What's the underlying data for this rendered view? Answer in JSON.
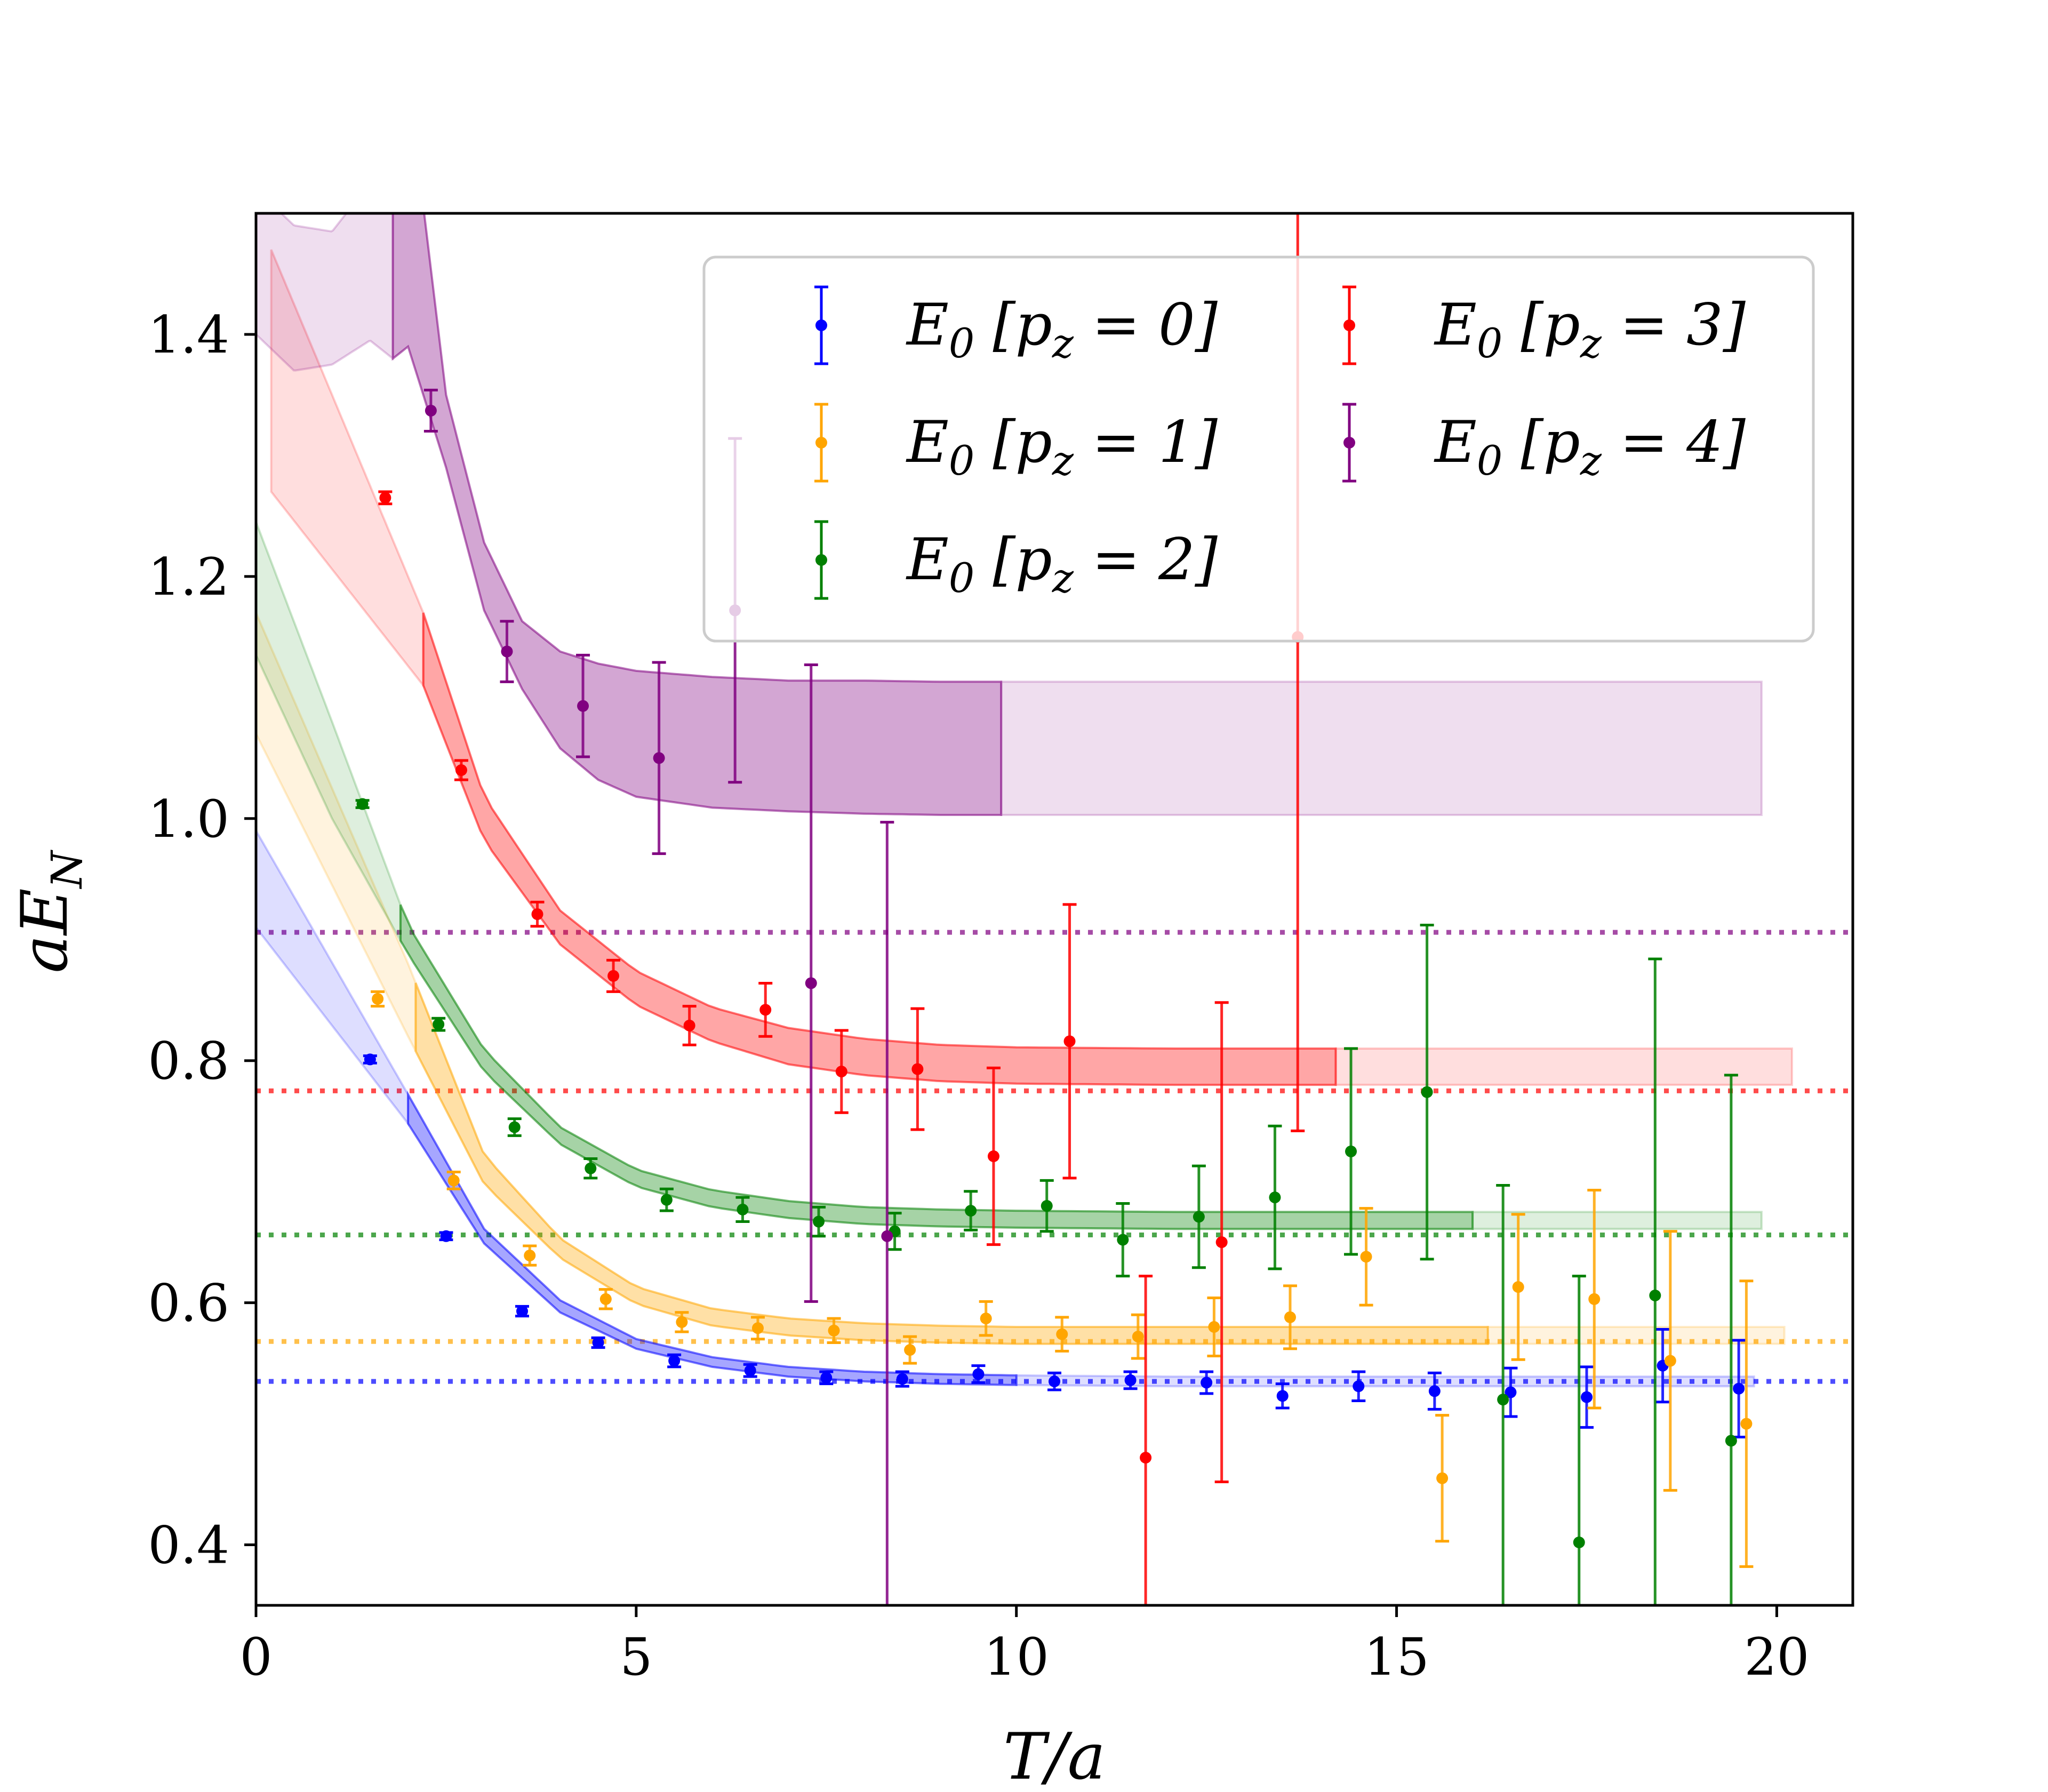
{
  "chart_data": {
    "type": "scatter",
    "title": "",
    "xlabel": "T/a",
    "ylabel": "aE_N",
    "xlim": [
      0,
      21
    ],
    "ylim": [
      0.35,
      1.5
    ],
    "grid": false,
    "legend_position": "top-right",
    "xticks": [
      0,
      5,
      10,
      15,
      20
    ],
    "xtick_labels": [
      "0",
      "5",
      "10",
      "15",
      "20"
    ],
    "yticks": [
      0.4,
      0.6,
      0.8,
      1.0,
      1.2,
      1.4
    ],
    "ytick_labels": [
      "0.4",
      "0.6",
      "0.8",
      "1.0",
      "1.2",
      "1.4"
    ],
    "series": [
      {
        "name": "E0 [pz = 0]",
        "legend_label": "E_0 [p_z = 0]",
        "color": "#0000ff",
        "plateau": 0.535,
        "band": {
          "x": [
            0,
            2,
            3,
            4,
            5,
            6,
            7,
            8,
            9,
            10,
            12,
            14,
            16,
            18,
            19.7
          ],
          "y": [
            0.95,
            0.76,
            0.655,
            0.597,
            0.566,
            0.551,
            0.543,
            0.539,
            0.537,
            0.536,
            0.535,
            0.535,
            0.535,
            0.535,
            0.535
          ],
          "half_width": [
            0.04,
            0.012,
            0.006,
            0.005,
            0.004,
            0.004,
            0.004,
            0.004,
            0.004,
            0.004,
            0.004,
            0.004,
            0.004,
            0.004,
            0.004
          ],
          "solid_from": 2.0,
          "solid_to": 10.0
        },
        "points": {
          "x": [
            1.5,
            2.5,
            3.5,
            4.5,
            5.5,
            6.5,
            7.5,
            8.5,
            9.5,
            10.5,
            11.5,
            12.5,
            13.5,
            14.5,
            15.5,
            16.5,
            17.5,
            18.5,
            19.5
          ],
          "y": [
            0.801,
            0.655,
            0.593,
            0.567,
            0.552,
            0.544,
            0.538,
            0.537,
            0.541,
            0.535,
            0.536,
            0.534,
            0.523,
            0.531,
            0.527,
            0.526,
            0.522,
            0.548,
            0.529
          ],
          "err": [
            0.003,
            0.003,
            0.004,
            0.004,
            0.005,
            0.005,
            0.005,
            0.006,
            0.007,
            0.007,
            0.007,
            0.009,
            0.01,
            0.012,
            0.015,
            0.02,
            0.025,
            0.03,
            0.04
          ]
        }
      },
      {
        "name": "E0 [pz = 1]",
        "legend_label": "E_0 [p_z = 1]",
        "color": "#ffa500",
        "plateau": 0.568,
        "band": {
          "x": [
            0,
            2,
            3,
            4,
            5,
            6,
            7,
            8,
            9,
            10,
            12,
            14,
            16,
            18,
            20.1
          ],
          "y": [
            1.12,
            0.85,
            0.71,
            0.645,
            0.606,
            0.588,
            0.58,
            0.576,
            0.574,
            0.573,
            0.573,
            0.573,
            0.573,
            0.573,
            0.573
          ],
          "half_width": [
            0.05,
            0.03,
            0.012,
            0.008,
            0.007,
            0.007,
            0.007,
            0.007,
            0.007,
            0.007,
            0.007,
            0.007,
            0.007,
            0.007,
            0.007
          ],
          "solid_from": 2.1,
          "solid_to": 16.2
        },
        "points": {
          "x": [
            1.6,
            2.6,
            3.6,
            4.6,
            5.6,
            6.6,
            7.6,
            8.6,
            9.6,
            10.6,
            11.6,
            12.6,
            13.6,
            14.6,
            15.6,
            16.6,
            17.6,
            18.6,
            19.6
          ],
          "y": [
            0.851,
            0.701,
            0.639,
            0.603,
            0.584,
            0.579,
            0.577,
            0.561,
            0.587,
            0.574,
            0.572,
            0.58,
            0.588,
            0.638,
            0.455,
            0.613,
            0.603,
            0.552,
            0.5
          ],
          "err": [
            0.006,
            0.007,
            0.008,
            0.008,
            0.008,
            0.009,
            0.01,
            0.011,
            0.014,
            0.014,
            0.018,
            0.024,
            0.026,
            0.04,
            0.052,
            0.06,
            0.09,
            0.107,
            0.118
          ]
        }
      },
      {
        "name": "E0 [pz = 2]",
        "legend_label": "E_0 [p_z = 2]",
        "color": "#008000",
        "plateau": 0.656,
        "band": {
          "x": [
            0,
            1,
            2,
            3,
            4,
            5,
            6,
            7,
            8,
            9,
            10,
            12,
            14,
            16,
            18,
            19.8
          ],
          "y": [
            1.19,
            1.04,
            0.9,
            0.8,
            0.738,
            0.703,
            0.686,
            0.677,
            0.672,
            0.67,
            0.669,
            0.668,
            0.668,
            0.668,
            0.668,
            0.668
          ],
          "half_width": [
            0.055,
            0.04,
            0.012,
            0.009,
            0.007,
            0.007,
            0.007,
            0.007,
            0.007,
            0.007,
            0.007,
            0.007,
            0.007,
            0.007,
            0.007,
            0.007
          ],
          "solid_from": 1.9,
          "solid_to": 16.0
        },
        "points": {
          "x": [
            1.4,
            2.4,
            3.4,
            4.4,
            5.4,
            6.4,
            7.4,
            8.4,
            9.4,
            10.4,
            11.4,
            12.4,
            13.4,
            14.4,
            15.4,
            16.4,
            17.4,
            18.4,
            19.4
          ],
          "y": [
            1.012,
            0.83,
            0.745,
            0.711,
            0.685,
            0.677,
            0.667,
            0.659,
            0.676,
            0.68,
            0.652,
            0.671,
            0.687,
            0.725,
            0.774,
            0.52,
            0.402,
            0.606,
            0.486
          ],
          "err": [
            0.003,
            0.005,
            0.007,
            0.008,
            0.009,
            0.01,
            0.012,
            0.015,
            0.016,
            0.021,
            0.03,
            0.042,
            0.059,
            0.085,
            0.138,
            0.177,
            0.22,
            0.278,
            0.302
          ]
        }
      },
      {
        "name": "E0 [pz = 3]",
        "legend_label": "E_0 [p_z = 3]",
        "color": "#ff0000",
        "plateau": 0.775,
        "band": {
          "x": [
            0.2,
            2.2,
            3,
            4,
            5,
            6,
            7,
            8,
            9,
            10,
            12,
            14,
            16,
            18,
            20.2
          ],
          "y": [
            1.37,
            1.14,
            1.0,
            0.91,
            0.86,
            0.83,
            0.812,
            0.803,
            0.798,
            0.796,
            0.795,
            0.795,
            0.795,
            0.795,
            0.795
          ],
          "half_width": [
            0.1,
            0.03,
            0.018,
            0.014,
            0.014,
            0.014,
            0.015,
            0.015,
            0.015,
            0.015,
            0.015,
            0.015,
            0.015,
            0.015,
            0.015
          ],
          "solid_from": 2.2,
          "solid_to": 14.2
        },
        "points": {
          "x": [
            1.7,
            2.7,
            3.7,
            4.7,
            5.7,
            6.7,
            7.7,
            8.7,
            9.7,
            10.7,
            11.7,
            12.7,
            13.7
          ],
          "y": [
            1.265,
            1.04,
            0.921,
            0.87,
            0.829,
            0.842,
            0.791,
            0.793,
            0.721,
            0.816,
            0.472,
            0.65,
            1.15
          ],
          "err": [
            0.005,
            0.008,
            0.01,
            0.013,
            0.016,
            0.022,
            0.034,
            0.05,
            0.073,
            0.113,
            0.15,
            0.198,
            0.408
          ]
        }
      },
      {
        "name": "E0 [pz = 4]",
        "legend_label": "E_0 [p_z = 4]",
        "color": "#800080",
        "plateau": 0.906,
        "band": {
          "x": [
            0,
            0.5,
            1,
            1.5,
            1.8,
            2,
            2.5,
            3,
            3.5,
            4,
            4.5,
            5,
            6,
            7,
            8,
            9,
            10,
            12,
            14,
            16,
            18,
            19.8
          ],
          "y": [
            1.46,
            1.43,
            1.43,
            1.46,
            1.52,
            1.5,
            1.32,
            1.2,
            1.135,
            1.098,
            1.08,
            1.07,
            1.063,
            1.06,
            1.059,
            1.058,
            1.058,
            1.058,
            1.058,
            1.058,
            1.058,
            1.058
          ],
          "half_width": [
            0.06,
            0.06,
            0.055,
            0.065,
            0.14,
            0.11,
            0.03,
            0.028,
            0.028,
            0.04,
            0.048,
            0.052,
            0.054,
            0.054,
            0.055,
            0.055,
            0.055,
            0.055,
            0.055,
            0.055,
            0.055,
            0.055
          ],
          "solid_from": 1.8,
          "solid_to": 9.8
        },
        "points": {
          "x": [
            2.3,
            3.3,
            4.3,
            5.3,
            6.3,
            7.3,
            8.3
          ],
          "y": [
            1.337,
            1.138,
            1.093,
            1.05,
            1.172,
            0.864,
            0.655
          ],
          "err": [
            0.017,
            0.025,
            0.042,
            0.079,
            0.142,
            0.263,
            0.342
          ]
        }
      }
    ]
  }
}
